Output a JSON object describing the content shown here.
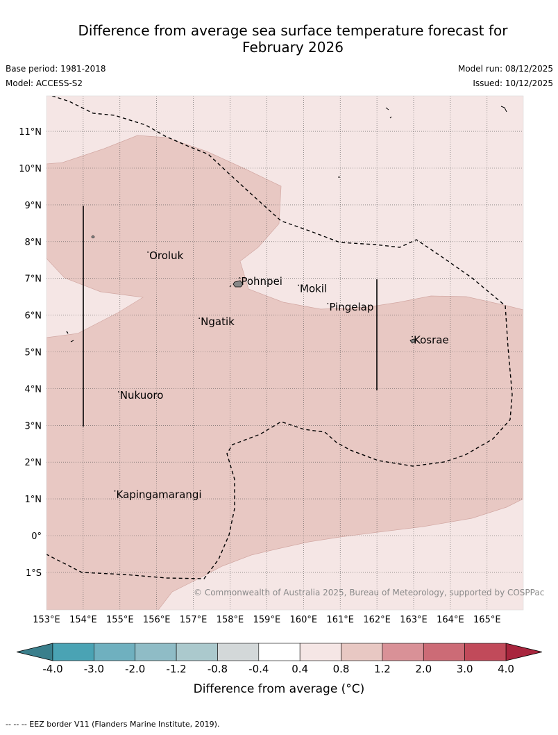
{
  "title_line1": "Difference from average sea surface temperature forecast for",
  "title_line2": "February 2026",
  "base_period": "Base period: 1981-2018",
  "model": "Model: ACCESS-S2",
  "model_run": "Model run: 08/12/2025",
  "issued": "Issued: 10/12/2025",
  "credit": "© Commonwealth of Australia 2025, Bureau of Meteorology, supported by COSPPac",
  "footer": "-- --  -- EEZ border V11 (Flanders Marine Institute, 2019).",
  "lon_labels": [
    "153°E",
    "154°E",
    "155°E",
    "156°E",
    "157°E",
    "158°E",
    "159°E",
    "160°E",
    "161°E",
    "162°E",
    "163°E",
    "164°E",
    "165°E"
  ],
  "lat_labels": [
    "11°N",
    "10°N",
    "9°N",
    "8°N",
    "7°N",
    "6°N",
    "5°N",
    "4°N",
    "3°N",
    "2°N",
    "1°N",
    "0°",
    "1°S"
  ],
  "places": [
    {
      "name": "Oroluk",
      "lon": 155.8,
      "lat": 7.6
    },
    {
      "name": "Pohnpei",
      "lon": 158.3,
      "lat": 6.9
    },
    {
      "name": "Mokil",
      "lon": 159.9,
      "lat": 6.7
    },
    {
      "name": "Pingelap",
      "lon": 160.7,
      "lat": 6.2
    },
    {
      "name": "Ngatik",
      "lon": 157.2,
      "lat": 5.8
    },
    {
      "name": "Kosrae",
      "lon": 163.0,
      "lat": 5.3
    },
    {
      "name": "Nukuoro",
      "lon": 155.0,
      "lat": 3.8
    },
    {
      "name": "Kapingamarangi",
      "lon": 154.9,
      "lat": 1.1
    }
  ],
  "colorbar": {
    "title": "Difference from average (°C)",
    "ticks": [
      "-4.0",
      "-3.0",
      "-2.0",
      "-1.2",
      "-0.8",
      "-0.4",
      "0.4",
      "0.8",
      "1.2",
      "2.0",
      "3.0",
      "4.0"
    ],
    "colors": [
      "#4aa3b4",
      "#6fb0bf",
      "#8fbcc6",
      "#abc9cd",
      "#d3d8d9",
      "#ffffff",
      "#f5e6e5",
      "#e8c8c3",
      "#d99197",
      "#cc6b76",
      "#c14a5a"
    ],
    "under_color": "#3a7f8c",
    "over_color": "#a8253d"
  }
}
